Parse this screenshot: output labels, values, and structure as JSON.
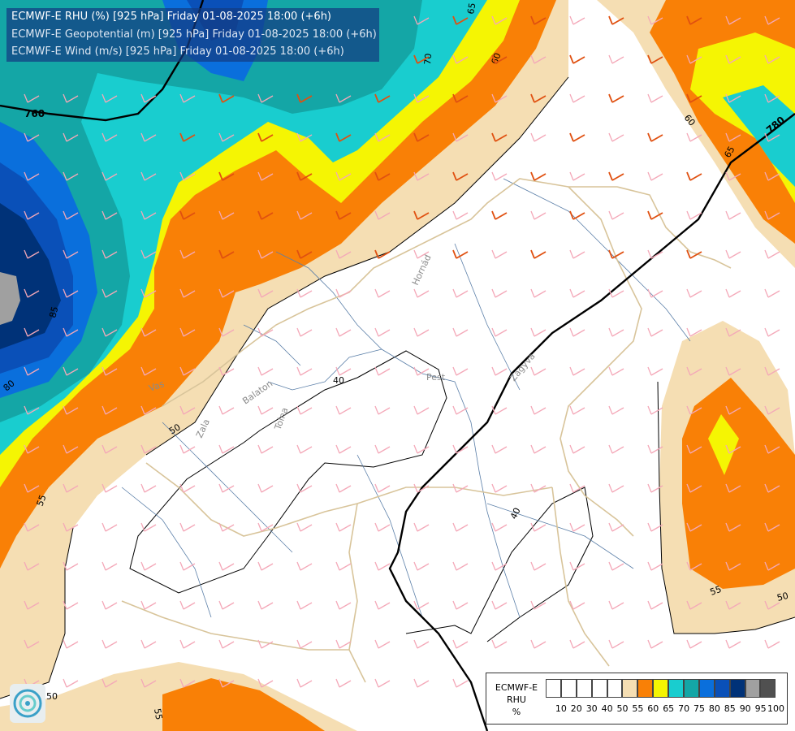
{
  "header": {
    "line1": "ECMWF-E RHU (%) [925 hPa] Friday 01-08-2025 18:00 (+6h)",
    "line2": "ECMWF-E Geopotential (m) [925 hPa] Friday 01-08-2025 18:00 (+6h)",
    "line3": "ECMWF-E Wind (m/s) [925 hPa] Friday 01-08-2025 18:00 (+6h)"
  },
  "legend": {
    "model": "ECMWF-E",
    "variable": "RHU",
    "unit": "%",
    "levels": [
      "10",
      "20",
      "30",
      "40",
      "50",
      "55",
      "60",
      "65",
      "70",
      "75",
      "80",
      "85",
      "90",
      "95",
      "100"
    ],
    "colors": [
      "#ffffff",
      "#ffffff",
      "#ffffff",
      "#ffffff",
      "#ffffff",
      "#f5deb3",
      "#f98006",
      "#f5f503",
      "#19cdcf",
      "#14a6a6",
      "#0a6fdc",
      "#0a50b8",
      "#003278",
      "#a0a0a0",
      "#505050"
    ]
  },
  "contour_labels": {
    "rhu": [
      "65",
      "70",
      "60",
      "60",
      "65",
      "85",
      "80",
      "50",
      "55",
      "50",
      "55",
      "50",
      "55",
      "55",
      "40",
      "40",
      "50"
    ],
    "geopotential": [
      "760",
      "780"
    ]
  },
  "place_labels": [
    "Hornád",
    "Pest",
    "Zagyva",
    "Balaton",
    "Zala",
    "Tolna",
    "Vas"
  ],
  "colors": {
    "rhu_50": "#ffffff",
    "rhu_55": "#f5deb3",
    "rhu_60": "#f98006",
    "rhu_65": "#f5f503",
    "rhu_70": "#19cdcf",
    "rhu_75": "#14a6a6",
    "rhu_80": "#0a6fdc",
    "rhu_85": "#0a50b8",
    "rhu_90": "#003278",
    "rhu_95": "#a0a0a0",
    "wind_barb_light": "#f4a8b8",
    "wind_barb_strong": "#e05010"
  }
}
